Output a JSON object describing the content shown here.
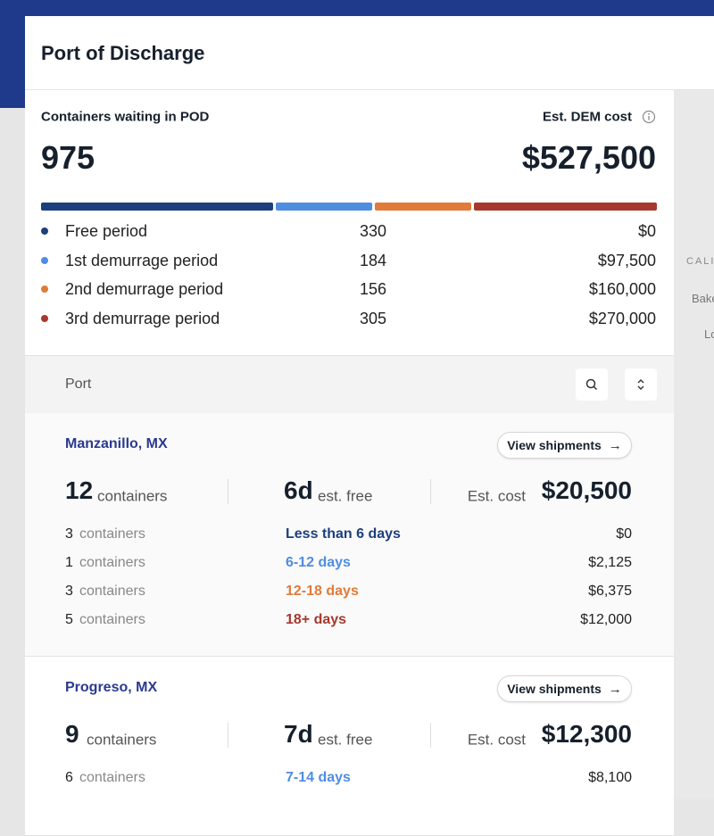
{
  "header": {
    "title": "Port of Discharge"
  },
  "map": {
    "labels": [
      "CALI",
      "Bake",
      "Lo"
    ]
  },
  "summary": {
    "containers_label": "Containers waiting in POD",
    "containers_value": "975",
    "cost_label": "Est. DEM cost",
    "cost_value": "$527,500",
    "periods": [
      {
        "name": "Free period",
        "count": "330",
        "cost": "$0",
        "color": "#1c3f7e"
      },
      {
        "name": "1st demurrage period",
        "count": "184",
        "cost": "$97,500",
        "color": "#4f8de0"
      },
      {
        "name": "2nd demurrage period",
        "count": "156",
        "cost": "$160,000",
        "color": "#e07b39"
      },
      {
        "name": "3rd demurrage period",
        "count": "305",
        "cost": "$270,000",
        "color": "#a6392e"
      }
    ]
  },
  "table": {
    "header": "Port"
  },
  "ports": [
    {
      "name": "Manzanillo, MX",
      "button": "View shipments",
      "containers": "12",
      "containers_unit": "containers",
      "days": "6d",
      "days_unit": "est. free",
      "cost_label": "Est. cost",
      "cost": "$20,500",
      "rows": [
        {
          "count": "3",
          "unit": "containers",
          "range": "Less than 6 days",
          "cost": "$0"
        },
        {
          "count": "1",
          "unit": "containers",
          "range": "6-12 days",
          "cost": "$2,125"
        },
        {
          "count": "3",
          "unit": "containers",
          "range": "12-18 days",
          "cost": "$6,375"
        },
        {
          "count": "5",
          "unit": "containers",
          "range": "18+ days",
          "cost": "$12,000"
        }
      ]
    },
    {
      "name": "Progreso, MX",
      "button": "View shipments",
      "containers": "9",
      "containers_unit": "containers",
      "days": "7d",
      "days_unit": "est. free",
      "cost_label": "Est. cost",
      "cost": "$12,300",
      "rows": [
        {
          "count": "6",
          "unit": "containers",
          "range": "7-14 days",
          "cost": "$8,100"
        }
      ]
    }
  ]
}
